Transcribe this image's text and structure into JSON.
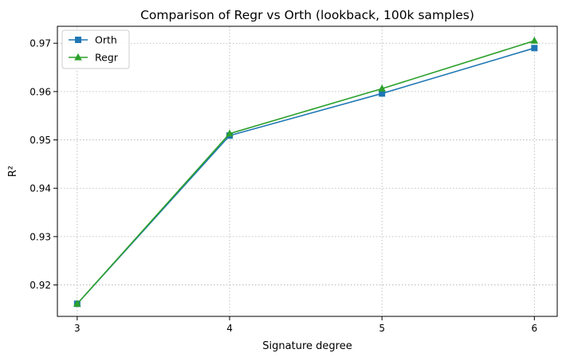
{
  "chart_data": {
    "type": "line",
    "title": "Comparison of Regr vs Orth (lookback, 100k samples)",
    "xlabel": "Signature degree",
    "ylabel": "R²",
    "x": [
      3,
      4,
      5,
      6
    ],
    "xticks": [
      "3",
      "4",
      "5",
      "6"
    ],
    "xlim": [
      2.87,
      6.15
    ],
    "ylim": [
      0.9135,
      0.9735
    ],
    "yticks": [
      "0.92",
      "0.93",
      "0.94",
      "0.95",
      "0.96",
      "0.97"
    ],
    "grid": true,
    "grid_style": "dotted",
    "legend_position": "top-left",
    "series": [
      {
        "name": "Orth",
        "values": [
          0.9161,
          0.9509,
          0.9596,
          0.969
        ],
        "color": "#1f77b4",
        "marker": "square"
      },
      {
        "name": "Regr",
        "values": [
          0.9161,
          0.9513,
          0.9606,
          0.9705
        ],
        "color": "#2ca02c",
        "marker": "triangle"
      }
    ]
  }
}
